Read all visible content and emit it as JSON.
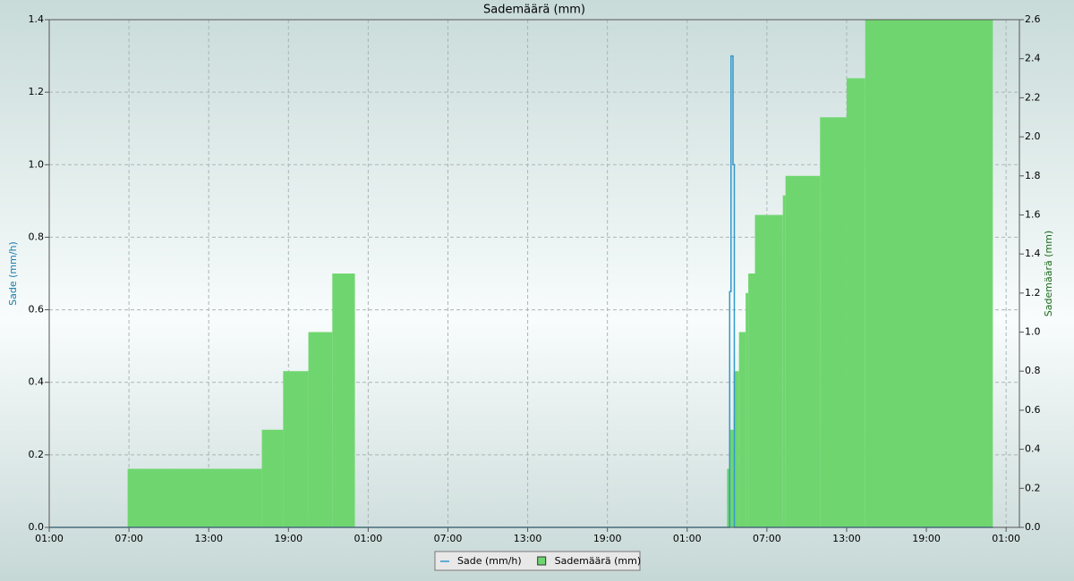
{
  "chart_data": {
    "type": "step",
    "title": "Sademäärä (mm)",
    "y_label": "Sade (mm/h)",
    "y2_label": "Sademäärä (mm)",
    "xlim": [
      0,
      73
    ],
    "ylim": [
      0,
      1.4
    ],
    "y2lim": [
      0,
      2.6
    ],
    "grid": true,
    "legend": "bottom",
    "xticks": [
      {
        "value": 0,
        "label": "01:00"
      },
      {
        "value": 6,
        "label": "07:00"
      },
      {
        "value": 12,
        "label": "13:00"
      },
      {
        "value": 18,
        "label": "19:00"
      },
      {
        "value": 24,
        "label": "01:00"
      },
      {
        "value": 30,
        "label": "07:00"
      },
      {
        "value": 36,
        "label": "13:00"
      },
      {
        "value": 42,
        "label": "19:00"
      },
      {
        "value": 48,
        "label": "01:00"
      },
      {
        "value": 54,
        "label": "07:00"
      },
      {
        "value": 60,
        "label": "13:00"
      },
      {
        "value": 66,
        "label": "19:00"
      },
      {
        "value": 72,
        "label": "01:00"
      }
    ],
    "yticks": [
      {
        "value": 0,
        "label": "0.0"
      },
      {
        "value": 0.2,
        "label": "0.2"
      },
      {
        "value": 0.4,
        "label": "0.4"
      },
      {
        "value": 0.6,
        "label": "0.6"
      },
      {
        "value": 0.8,
        "label": "0.8"
      },
      {
        "value": 1,
        "label": "1.0"
      },
      {
        "value": 1.2,
        "label": "1.2"
      },
      {
        "value": 1.4,
        "label": "1.4"
      }
    ],
    "y2ticks": [
      {
        "value": 0,
        "label": "0.0"
      },
      {
        "value": 0.2,
        "label": "0.2"
      },
      {
        "value": 0.4,
        "label": "0.4"
      },
      {
        "value": 0.6,
        "label": "0.6"
      },
      {
        "value": 0.8,
        "label": "0.8"
      },
      {
        "value": 1,
        "label": "1.0"
      },
      {
        "value": 1.2,
        "label": "1.2"
      },
      {
        "value": 1.4,
        "label": "1.4"
      },
      {
        "value": 1.6,
        "label": "1.6"
      },
      {
        "value": 1.8,
        "label": "1.8"
      },
      {
        "value": 2,
        "label": "2.0"
      },
      {
        "value": 2.2,
        "label": "2.2"
      },
      {
        "value": 2.4,
        "label": "2.4"
      },
      {
        "value": 2.6,
        "label": "2.6"
      }
    ],
    "series": [
      {
        "name": "Sademäärä (mm)",
        "color": "#6fd66f",
        "style": "area",
        "axis": "y2",
        "x": [
          0,
          5.9,
          16.0,
          17.6,
          19.5,
          21.3,
          23.0,
          51.0,
          51.2,
          51.5,
          51.9,
          52.4,
          52.6,
          53.1,
          55.2,
          55.4,
          58.0,
          60.0,
          61.4,
          71.0
        ],
        "values": [
          0,
          0.3,
          0.5,
          0.8,
          1.0,
          1.3,
          0,
          0.3,
          0.5,
          0.8,
          1.0,
          1.2,
          1.3,
          1.6,
          1.7,
          1.8,
          2.1,
          2.3,
          2.6,
          0
        ]
      },
      {
        "name": "Sade (mm/h)",
        "color": "#3399cc",
        "style": "line",
        "axis": "y",
        "x": [
          0,
          51.2,
          51.3,
          51.45,
          51.55,
          71.0
        ],
        "values": [
          0,
          0.65,
          1.3,
          1.0,
          0,
          0
        ]
      }
    ]
  }
}
